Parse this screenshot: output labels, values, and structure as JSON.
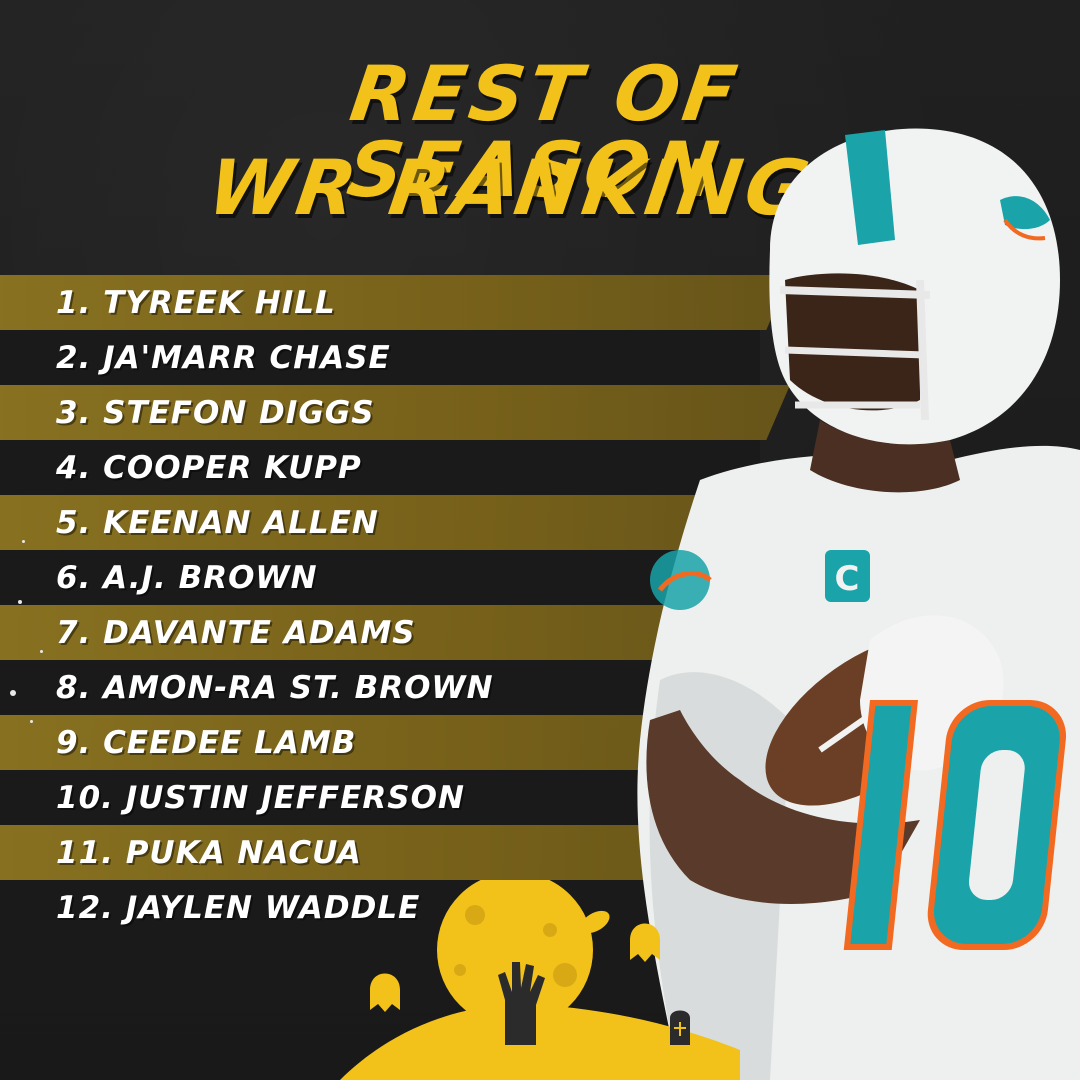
{
  "title": {
    "line1": "REST OF SEASON",
    "line2": "WR RANKINGS"
  },
  "rankings": [
    "1. TYREEK HILL",
    "2. JA'MARR CHASE",
    "3. STEFON DIGGS",
    "4. COOPER KUPP",
    "5. KEENAN ALLEN",
    "6. A.J. BROWN",
    "7. DAVANTE ADAMS",
    "8. AMON-RA ST. BROWN",
    "9. CEEDEE LAMB",
    "10. JUSTIN JEFFERSON",
    "11. PUKA NACUA",
    "12. JAYLEN WADDLE"
  ],
  "colors": {
    "title": "#f2c21a",
    "stripe_gold": "#8d7520",
    "stripe_dark": "#1a1a1a",
    "jersey_teal": "#1aa3a8",
    "jersey_orange": "#f26a21",
    "moon": "#f2c21a"
  },
  "icons": {
    "player": "football-player-illustration",
    "moon": "full-moon-icon",
    "zombie_hand": "zombie-hand-icon",
    "ghost": "ghost-icon",
    "football": "football-icon",
    "tombstone": "tombstone-icon"
  }
}
